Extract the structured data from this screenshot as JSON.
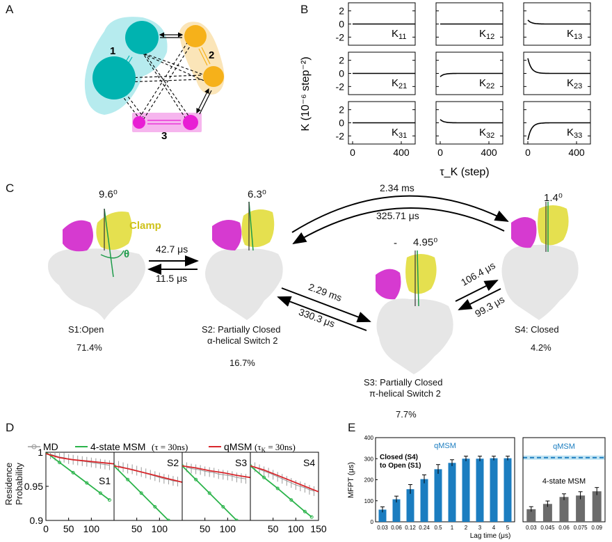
{
  "panels": {
    "a": "A",
    "b": "B",
    "c": "C",
    "d": "D",
    "e": "E"
  },
  "panel_a": {
    "group_labels": [
      "1",
      "2",
      "3"
    ],
    "colors": {
      "group1": "#00b3b0",
      "group2": "#f6b11a",
      "group3": "#e81fd4",
      "halo1": "#b6ebee",
      "halo2": "#fbe5b8",
      "halo3": "#f6b5ee"
    }
  },
  "panel_b": {
    "ylabel": "K (10⁻⁶ step⁻²)",
    "xlabel": "τ_K (step)",
    "yticks": [
      "2",
      "0",
      "-2"
    ],
    "xticks": [
      "0",
      "400"
    ],
    "cells": [
      [
        "K11",
        "K12",
        "K13"
      ],
      [
        "K21",
        "K22",
        "K23"
      ],
      [
        "K31",
        "K32",
        "K33"
      ]
    ],
    "cell_subs": [
      [
        "11",
        "12",
        "13"
      ],
      [
        "21",
        "22",
        "23"
      ],
      [
        "31",
        "32",
        "33"
      ]
    ],
    "kernel_initial_values": [
      [
        0,
        0,
        0.6
      ],
      [
        0,
        -0.5,
        2.3
      ],
      [
        0,
        0.5,
        -2.6
      ]
    ]
  },
  "panel_c": {
    "states": [
      {
        "name": "S1:Open",
        "pct": "71.4%",
        "angle": "9.6⁰"
      },
      {
        "name": "S2: Partially Closed",
        "sub": "α-helical Switch 2",
        "pct": "16.7%",
        "angle": "6.3⁰"
      },
      {
        "name": "S3: Partially Closed",
        "sub": "π-helical Switch 2",
        "pct": "7.7%",
        "angle": "4.95⁰"
      },
      {
        "name": "S4: Closed",
        "pct": "4.2%",
        "angle": "1.4⁰"
      }
    ],
    "clamp_label": "Clamp",
    "theta_label": "θ",
    "dash_label": "-",
    "rates": {
      "s1_s2": "42.7 μs",
      "s2_s1": "11.5 μs",
      "s2_s3": "2.29 ms",
      "s3_s2": "330.3 μs",
      "s2_s4": "2.34 ms",
      "s4_s2": "325.71 μs",
      "s3_s4": "106.4 μs",
      "s4_s3": "99.3 μs"
    }
  },
  "panel_d": {
    "legend": {
      "md": "MD",
      "msm": "4-state MSM",
      "msm_tau": "(τ = 30ns)",
      "qmsm": "qMSM",
      "qmsm_tau": "(τ",
      "qmsm_tau_sub": "K",
      "qmsm_tau_val": " = 30ns)"
    },
    "ylabel_line1": "Residence",
    "ylabel_line2": "Probability",
    "yticks": [
      "1",
      "0.95",
      "0.9"
    ],
    "xticks_first": [
      "0",
      "50",
      "100"
    ],
    "xticks_mid": [
      "50",
      "100"
    ],
    "xticks_last": [
      "50",
      "100",
      "150"
    ],
    "subplots": [
      "S1",
      "S2",
      "S3",
      "S4"
    ],
    "colors": {
      "md": "#9a9a9a",
      "msm": "#2ab34a",
      "qmsm": "#d9262b"
    },
    "chart_data": [
      {
        "type": "line",
        "title": "S1",
        "xlim": [
          0,
          150
        ],
        "ylim": [
          0.9,
          1.0
        ],
        "series": [
          {
            "name": "MD",
            "x": [
              10,
              20,
              30,
              40,
              50,
              60,
              70,
              80,
              90,
              100,
              110,
              120,
              130,
              140
            ],
            "y": [
              0.997,
              0.995,
              0.993,
              0.992,
              0.99,
              0.989,
              0.988,
              0.987,
              0.986,
              0.985,
              0.984,
              0.983,
              0.982,
              0.981
            ]
          },
          {
            "name": "4-state MSM",
            "x": [
              0,
              30,
              60,
              90,
              120,
              140
            ],
            "y": [
              1.0,
              0.985,
              0.97,
              0.955,
              0.94,
              0.93
            ]
          },
          {
            "name": "qMSM",
            "x": [
              0,
              30,
              60,
              90,
              120,
              150
            ],
            "y": [
              0.998,
              0.992,
              0.989,
              0.987,
              0.985,
              0.983
            ]
          }
        ]
      },
      {
        "type": "line",
        "title": "S2",
        "xlim": [
          0,
          150
        ],
        "ylim": [
          0.9,
          1.0
        ],
        "series": [
          {
            "name": "MD",
            "x": [
              10,
              20,
              30,
              40,
              50,
              60,
              70,
              80,
              90,
              100,
              110,
              120,
              130,
              140
            ],
            "y": [
              0.98,
              0.978,
              0.976,
              0.975,
              0.973,
              0.971,
              0.969,
              0.967,
              0.965,
              0.963,
              0.961,
              0.96,
              0.958,
              0.957
            ]
          },
          {
            "name": "4-state MSM",
            "x": [
              0,
              30,
              60,
              90,
              120
            ],
            "y": [
              0.98,
              0.96,
              0.94,
              0.92,
              0.9
            ]
          },
          {
            "name": "qMSM",
            "x": [
              0,
              30,
              60,
              90,
              120,
              150
            ],
            "y": [
              0.98,
              0.976,
              0.971,
              0.966,
              0.961,
              0.956
            ]
          }
        ]
      },
      {
        "type": "line",
        "title": "S3",
        "xlim": [
          0,
          150
        ],
        "ylim": [
          0.9,
          1.0
        ],
        "series": [
          {
            "name": "MD",
            "x": [
              10,
              20,
              30,
              40,
              50,
              60,
              70,
              80,
              90,
              100,
              110,
              120,
              130,
              140
            ],
            "y": [
              0.978,
              0.976,
              0.975,
              0.974,
              0.972,
              0.971,
              0.97,
              0.968,
              0.967,
              0.966,
              0.965,
              0.963,
              0.962,
              0.961
            ]
          },
          {
            "name": "4-state MSM",
            "x": [
              0,
              30,
              60,
              90,
              120
            ],
            "y": [
              0.98,
              0.96,
              0.94,
              0.92,
              0.9
            ]
          },
          {
            "name": "qMSM",
            "x": [
              0,
              30,
              60,
              90,
              120,
              150
            ],
            "y": [
              0.98,
              0.977,
              0.973,
              0.97,
              0.966,
              0.963
            ]
          }
        ]
      },
      {
        "type": "line",
        "title": "S4",
        "xlim": [
          0,
          150
        ],
        "ylim": [
          0.9,
          1.0
        ],
        "series": [
          {
            "name": "MD",
            "x": [
              10,
              20,
              30,
              40,
              50,
              60,
              70,
              80,
              90,
              100,
              110,
              120,
              130,
              140
            ],
            "y": [
              0.978,
              0.975,
              0.972,
              0.97,
              0.967,
              0.964,
              0.961,
              0.958,
              0.955,
              0.952,
              0.95,
              0.948,
              0.945,
              0.943
            ]
          },
          {
            "name": "4-state MSM",
            "x": [
              0,
              30,
              60,
              90,
              120,
              135
            ],
            "y": [
              0.98,
              0.963,
              0.947,
              0.93,
              0.913,
              0.905
            ]
          },
          {
            "name": "qMSM",
            "x": [
              0,
              30,
              60,
              90,
              120,
              150
            ],
            "y": [
              0.98,
              0.974,
              0.966,
              0.958,
              0.95,
              0.942
            ]
          }
        ]
      }
    ]
  },
  "panel_e": {
    "ylabel": "MFPT (μs)",
    "xlabel": "Lag time (μs)",
    "yticks": [
      "0",
      "100",
      "200",
      "300",
      "400"
    ],
    "left_title": "qMSM",
    "left_note_1": "Closed (S4)",
    "left_note_2": "to Open (S1)",
    "right_title": "qMSM",
    "right_note": "4-state MSM",
    "colors": {
      "blue": "#1b7dc0",
      "gray": "#6b6b6b",
      "band": "#bfe3f2",
      "dash": "#1b7dc0"
    },
    "chart_data": [
      {
        "type": "bar",
        "title": "qMSM",
        "ylim": [
          0,
          400
        ],
        "categories": [
          "0.03",
          "0.06",
          "0.12",
          "0.24",
          "0.5",
          "1",
          "2",
          "3",
          "4",
          "5"
        ],
        "values": [
          58,
          107,
          155,
          203,
          250,
          280,
          300,
          300,
          302,
          302
        ],
        "errors": [
          13,
          15,
          22,
          20,
          22,
          15,
          12,
          12,
          10,
          10
        ]
      },
      {
        "type": "bar",
        "title": "4-state MSM",
        "ylim": [
          0,
          400
        ],
        "categories": [
          "0.03",
          "0.045",
          "0.06",
          "0.075",
          "0.09"
        ],
        "values": [
          60,
          85,
          118,
          125,
          145
        ],
        "errors": [
          12,
          14,
          15,
          18,
          18
        ],
        "reference_line": 305
      }
    ]
  }
}
